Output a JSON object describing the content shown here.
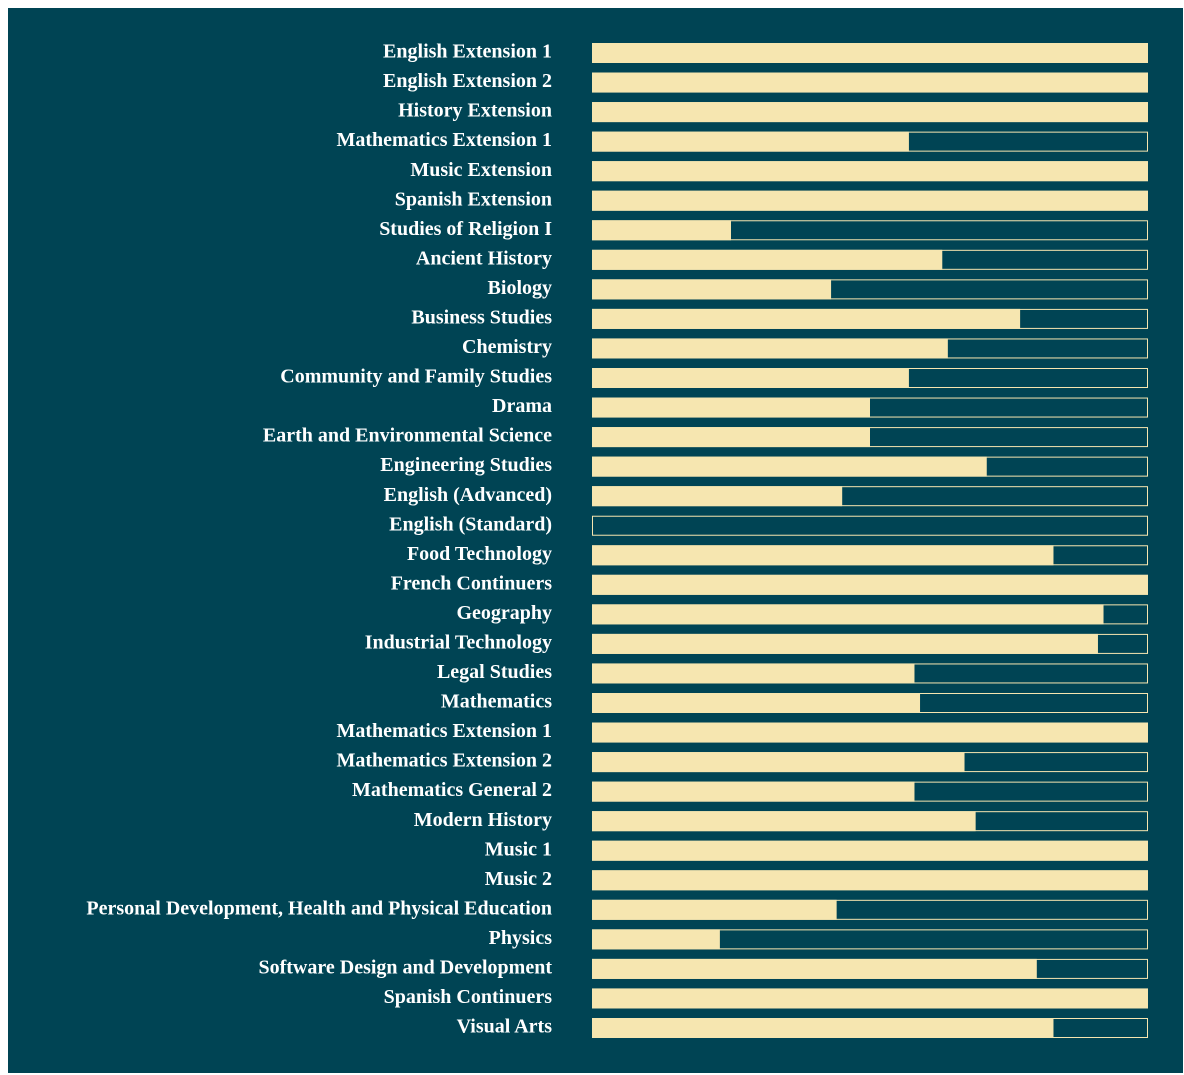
{
  "chart_data": {
    "type": "barh",
    "categories": [
      "English Extension 1",
      "English Extension 2",
      "History Extension",
      "Mathematics Extension 1",
      "Music Extension",
      "Spanish Extension",
      "Studies of Religion I",
      "Ancient History",
      "Biology",
      "Business Studies",
      "Chemistry",
      "Community and Family Studies",
      "Drama",
      "Earth and Environmental Science",
      "Engineering Studies",
      "English (Advanced)",
      "English (Standard)",
      "Food Technology",
      "French Continuers",
      "Geography",
      "Industrial Technology",
      "Legal Studies",
      "Mathematics",
      "Mathematics Extension 1",
      "Mathematics Extension 2",
      "Mathematics General 2",
      "Modern History",
      "Music 1",
      "Music 2",
      "Personal Development, Health and Physical Education",
      "Physics",
      "Software Design and Development",
      "Spanish Continuers",
      "Visual Arts"
    ],
    "values": [
      100,
      100,
      100,
      57,
      100,
      100,
      25,
      63,
      43,
      77,
      64,
      57,
      50,
      50,
      71,
      45,
      0,
      83,
      100,
      92,
      91,
      58,
      59,
      100,
      67,
      58,
      69,
      100,
      100,
      44,
      23,
      80,
      100,
      83
    ],
    "color": "#f6e6b0",
    "xlim": [
      0,
      100
    ]
  }
}
